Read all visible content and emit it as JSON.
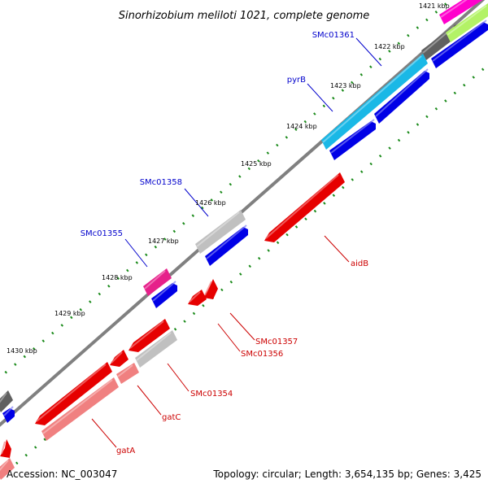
{
  "title": "Sinorhizobium meliloti 1021, complete genome",
  "footer": {
    "accession": "Accession: NC_003047",
    "summary": "Topology: circular; Length: 3,654,135 bp; Genes: 3,425"
  },
  "ticks": [
    "1421 kbp",
    "1422 kbp",
    "1423 kbp",
    "1424 kbp",
    "1425 kbp",
    "1426 kbp",
    "1427 kbp",
    "1428 kbp",
    "1429 kbp",
    "1430 kbp"
  ],
  "forward_labels": [
    "SMc01361",
    "pyrB",
    "SMc01358",
    "SMc01355"
  ],
  "reverse_labels": [
    "aidB",
    "SMc01357",
    "SMc01356",
    "SMc01354",
    "gatC",
    "gatA"
  ],
  "colors": {
    "forward_label": "#0000cc",
    "reverse_label": "#cc0000",
    "backbone": "#808080",
    "dots": "#1a8a1a",
    "cds_forward": "#0000e6",
    "cds_reverse": "#e60000",
    "gene_dark_gray": "#606060",
    "gene_light_gray": "#c0c0c0",
    "gene_cyan": "#1ab8e6",
    "gene_pink": "#e6208a",
    "gene_light_red": "#f08080",
    "gene_magenta": "#ff00cc",
    "gene_lime": "#b3f266"
  }
}
